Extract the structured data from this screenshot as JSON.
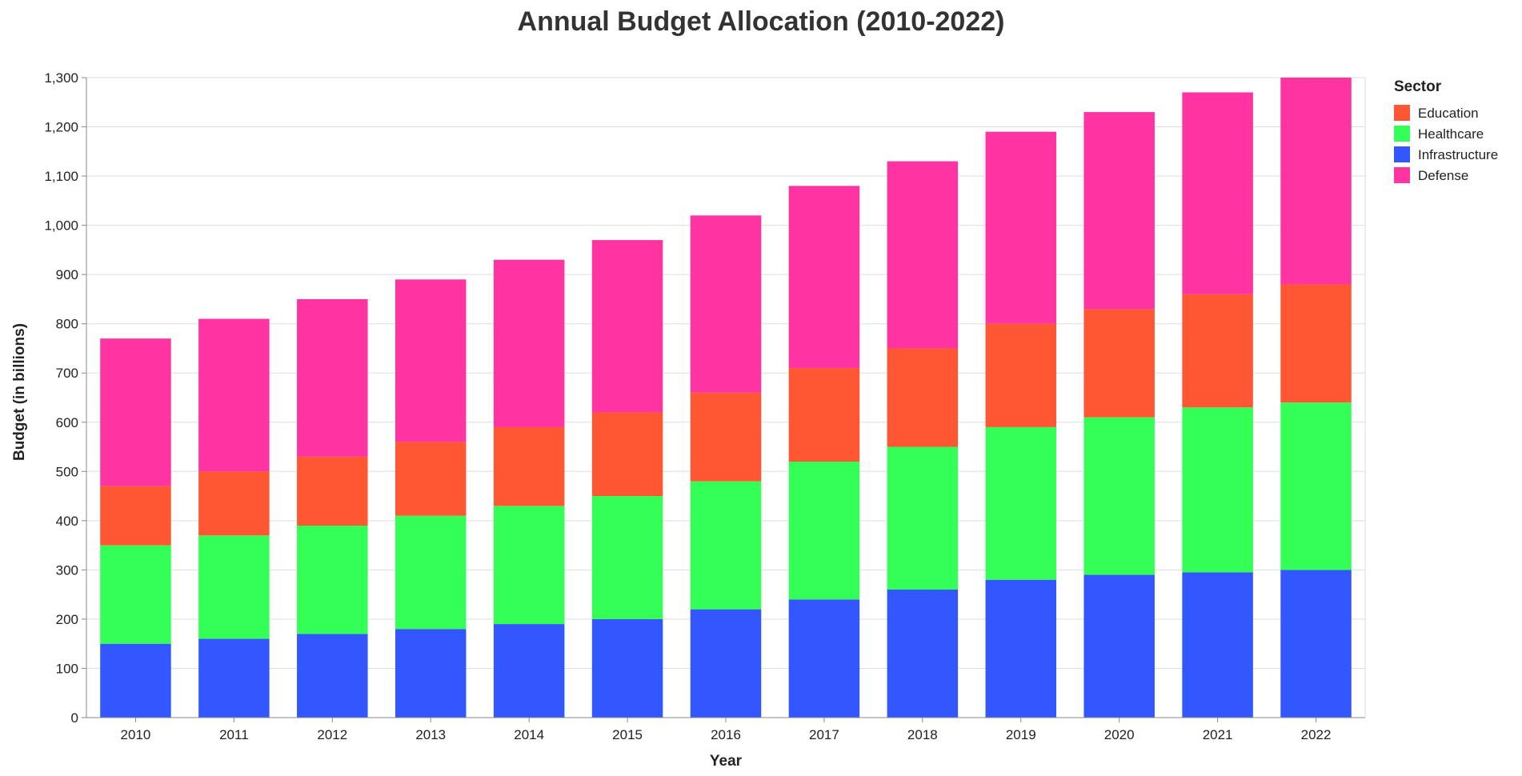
{
  "chart_data": {
    "type": "bar",
    "stacked": true,
    "title": "Annual Budget Allocation (2010-2022)",
    "xlabel": "Year",
    "ylabel": "Budget (in billions)",
    "ylim": [
      0,
      1300
    ],
    "y_ticks": [
      0,
      100,
      200,
      300,
      400,
      500,
      600,
      700,
      800,
      900,
      1000,
      1100,
      1200,
      1300
    ],
    "y_tick_labels": [
      "0",
      "100",
      "200",
      "300",
      "400",
      "500",
      "600",
      "700",
      "800",
      "900",
      "1,000",
      "1,100",
      "1,200",
      "1,300"
    ],
    "grid": true,
    "legend": {
      "title": "Sector",
      "position": "top-right"
    },
    "categories": [
      "2010",
      "2011",
      "2012",
      "2013",
      "2014",
      "2015",
      "2016",
      "2017",
      "2018",
      "2019",
      "2020",
      "2021",
      "2022"
    ],
    "stack_order": [
      "Infrastructure",
      "Healthcare",
      "Education",
      "Defense"
    ],
    "series": [
      {
        "name": "Education",
        "color": "#ff5733",
        "values": [
          120,
          130,
          140,
          150,
          160,
          170,
          180,
          190,
          200,
          210,
          220,
          230,
          240
        ]
      },
      {
        "name": "Healthcare",
        "color": "#33ff57",
        "values": [
          200,
          210,
          220,
          230,
          240,
          250,
          260,
          280,
          290,
          310,
          320,
          335,
          340
        ]
      },
      {
        "name": "Infrastructure",
        "color": "#3357ff",
        "values": [
          150,
          160,
          170,
          180,
          190,
          200,
          220,
          240,
          260,
          280,
          290,
          295,
          300
        ]
      },
      {
        "name": "Defense",
        "color": "#ff33a1",
        "values": [
          300,
          310,
          320,
          330,
          340,
          350,
          360,
          370,
          380,
          390,
          400,
          410,
          420
        ]
      }
    ]
  }
}
